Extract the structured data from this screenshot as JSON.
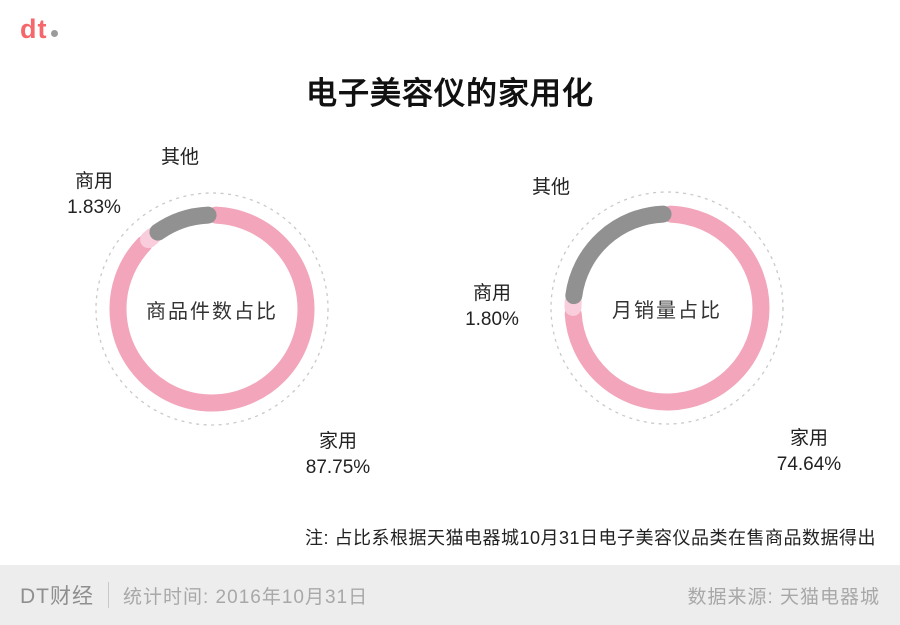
{
  "logo": {
    "text": "dt"
  },
  "title": "电子美容仪的家用化",
  "chart_data": [
    {
      "type": "pie",
      "title": "商品件数占比",
      "slices": [
        {
          "label": "家用",
          "value": 87.75,
          "display": "87.75%",
          "color": "#f2a5bb"
        },
        {
          "label": "商用",
          "value": 1.83,
          "display": "1.83%",
          "color": "#f9cddb"
        },
        {
          "label": "其他",
          "value": 10.42,
          "display": "",
          "color": "#919191"
        }
      ],
      "legend_position": "outside",
      "donut": true
    },
    {
      "type": "pie",
      "title": "月销量占比",
      "slices": [
        {
          "label": "家用",
          "value": 74.64,
          "display": "74.64%",
          "color": "#f2a5bb"
        },
        {
          "label": "商用",
          "value": 1.8,
          "display": "1.80%",
          "color": "#f9cddb"
        },
        {
          "label": "其他",
          "value": 23.56,
          "display": "",
          "color": "#919191"
        }
      ],
      "legend_position": "outside",
      "donut": true
    }
  ],
  "colors": {
    "home_pink": "#f2a5bb",
    "commercial_light_pink": "#f9cddb",
    "other_gray": "#919191",
    "dashed_ring": "#c9c9c9",
    "footer_bg": "#ededed"
  },
  "note": "注: 占比系根据天猫电器城10月31日电子美容仪品类在售商品数据得出",
  "footer": {
    "brand": "DT财经",
    "stat_time": "统计时间: 2016年10月31日",
    "source": "数据来源: 天猫电器城"
  }
}
